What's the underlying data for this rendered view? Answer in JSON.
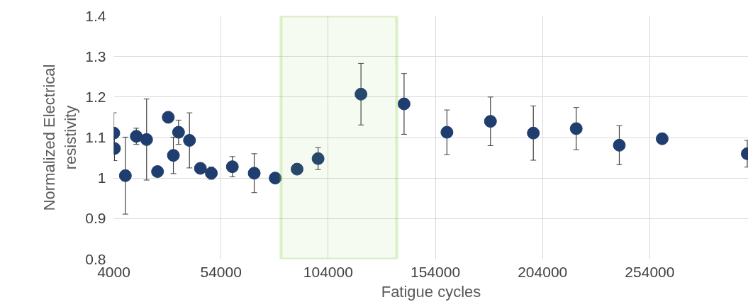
{
  "chart_data": {
    "type": "scatter",
    "xlabel": "Fatigue cycles",
    "ylabel": "Normalized Electrical resistivity",
    "x": [
      4000,
      4300,
      9400,
      14500,
      19300,
      24400,
      29400,
      31800,
      34200,
      39300,
      44400,
      49500,
      59300,
      69500,
      79300,
      89500,
      99300,
      119300,
      139400,
      159400,
      179700,
      199700,
      219700,
      239800,
      259800,
      299500
    ],
    "series": [
      {
        "color": "#1f3d6e",
        "values": [
          1.111,
          1.073,
          1.006,
          1.103,
          1.095,
          1.016,
          1.15,
          1.056,
          1.113,
          1.093,
          1.024,
          1.012,
          1.028,
          1.012,
          1.0,
          1.022,
          1.048,
          1.207,
          1.183,
          1.113,
          1.14,
          1.111,
          1.122,
          1.081,
          1.097,
          1.06
        ],
        "errors": [
          0.05,
          0.03,
          0.095,
          0.02,
          0.1,
          null,
          null,
          0.045,
          0.03,
          0.068,
          null,
          0.015,
          0.025,
          0.048,
          null,
          null,
          0.027,
          0.076,
          0.075,
          0.055,
          0.06,
          0.067,
          0.052,
          0.048,
          null,
          0.033
        ]
      }
    ],
    "xlim": [
      4000,
      300000
    ],
    "xticks": [
      4000,
      54000,
      104000,
      154000,
      204000,
      254000
    ],
    "ylim": [
      0.8,
      1.4
    ],
    "yticks": [
      0.8,
      0.9,
      1,
      1.1,
      1.2,
      1.3,
      1.4
    ],
    "grid": true,
    "marker": "circle",
    "bands": [
      {
        "axis": "x",
        "from": 82000,
        "to": 136000,
        "color": "#92d050"
      }
    ]
  }
}
